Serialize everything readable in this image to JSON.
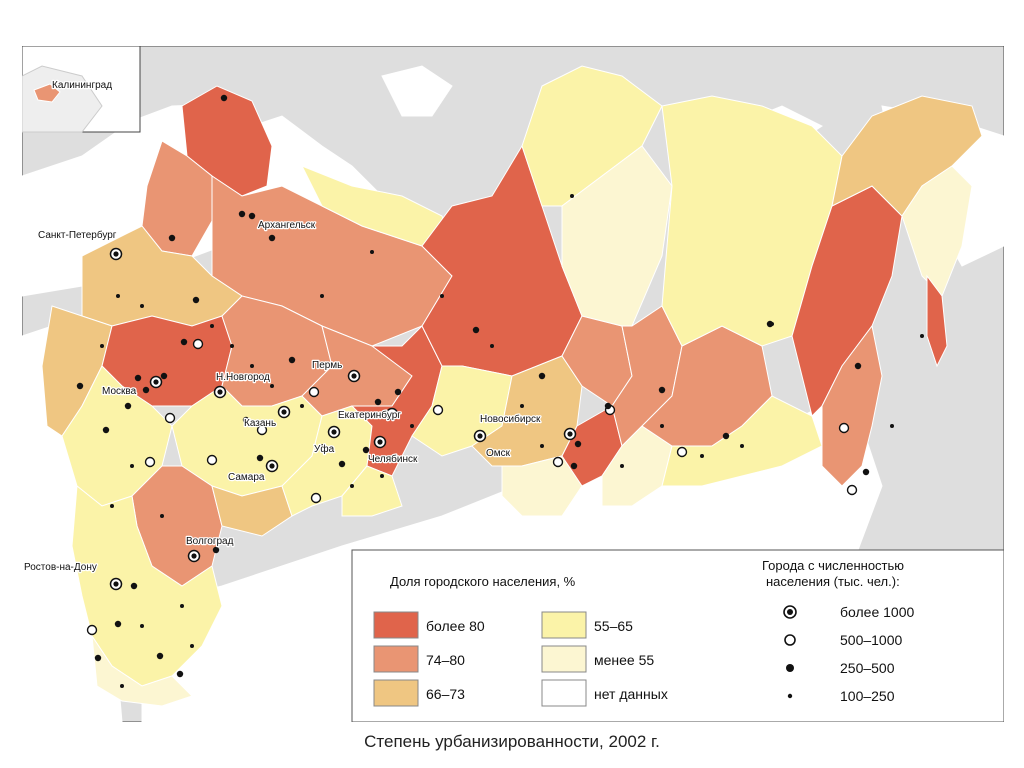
{
  "caption": "Степень урбанизированности, 2002 г.",
  "colors": {
    "sea": "#dedede",
    "land_foreign": "#ffffff",
    "border": "#ffffff",
    "class_over_80": "#e0644b",
    "class_74_80": "#e99573",
    "class_66_73": "#efc682",
    "class_55_65": "#fbf3a8",
    "class_under_55": "#fcf6d2",
    "class_no_data": "#ffffff"
  },
  "legend_share": {
    "title": "Доля городского населения, %",
    "items": [
      {
        "key": "class_over_80",
        "label": "более 80"
      },
      {
        "key": "class_74_80",
        "label": "74–80"
      },
      {
        "key": "class_66_73",
        "label": "66–73"
      },
      {
        "key": "class_55_65",
        "label": "55–65"
      },
      {
        "key": "class_under_55",
        "label": "менее 55"
      },
      {
        "key": "class_no_data",
        "label": "нет данных"
      }
    ]
  },
  "legend_cities": {
    "title_line1": "Города с численностью",
    "title_line2": "населения (тыс. чел.):",
    "items": [
      {
        "symbol": "over-1000",
        "label": "более 1000"
      },
      {
        "symbol": "500-1000",
        "label": "500–1000"
      },
      {
        "symbol": "250-500",
        "label": "250–500"
      },
      {
        "symbol": "100-250",
        "label": "100–250"
      }
    ]
  },
  "city_labels": {
    "kaliningrad": "Калининград",
    "arkhangelsk": "Архангельск",
    "spb": "Санкт-Петербург",
    "moscow": "Москва",
    "nnovgorod": "Н.Новгород",
    "perm": "Пермь",
    "yekaterinburg": "Екатеринбург",
    "kazan": "Казань",
    "ufa": "Уфа",
    "chelyabinsk": "Челябинск",
    "samara": "Самара",
    "novosibirsk": "Новосибирск",
    "omsk": "Омск",
    "volgograd": "Волгоград",
    "rostov": "Ростов-на-Дону"
  }
}
